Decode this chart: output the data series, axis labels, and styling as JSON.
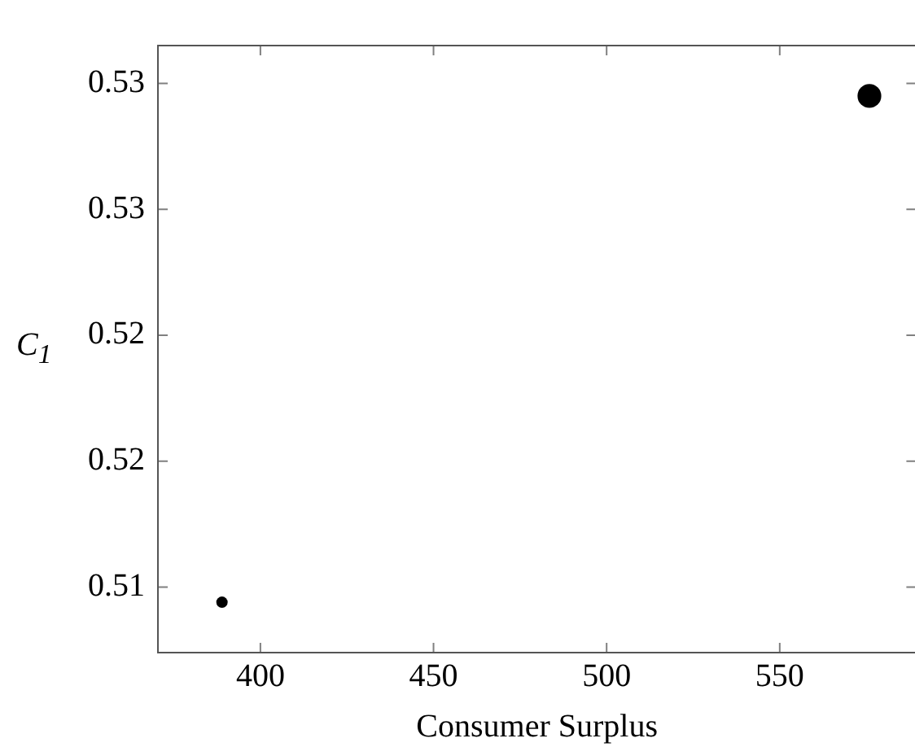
{
  "chart_data": {
    "type": "bubble",
    "xlabel": "Consumer Surplus",
    "ylabel": "C$_{1}$",
    "series": [
      {
        "color": "#000000",
        "x": [
          388.9,
          575.9
        ],
        "values": [
          0.5094,
          0.5295
        ],
        "sizes": [
          0.23,
          1
        ]
      }
    ],
    "xlim": [
      370.4,
      589.4
    ],
    "xticks": [
      400,
      450,
      500,
      550
    ],
    "ylim": [
      0.5074,
      0.5315
    ],
    "yticks": [
      0.51,
      {
        "value": 0.515,
        "label": "0.52"
      },
      0.52,
      {
        "value": 0.525,
        "label": "0.53"
      },
      0.53
    ],
    "grid": false,
    "legend": false
  }
}
